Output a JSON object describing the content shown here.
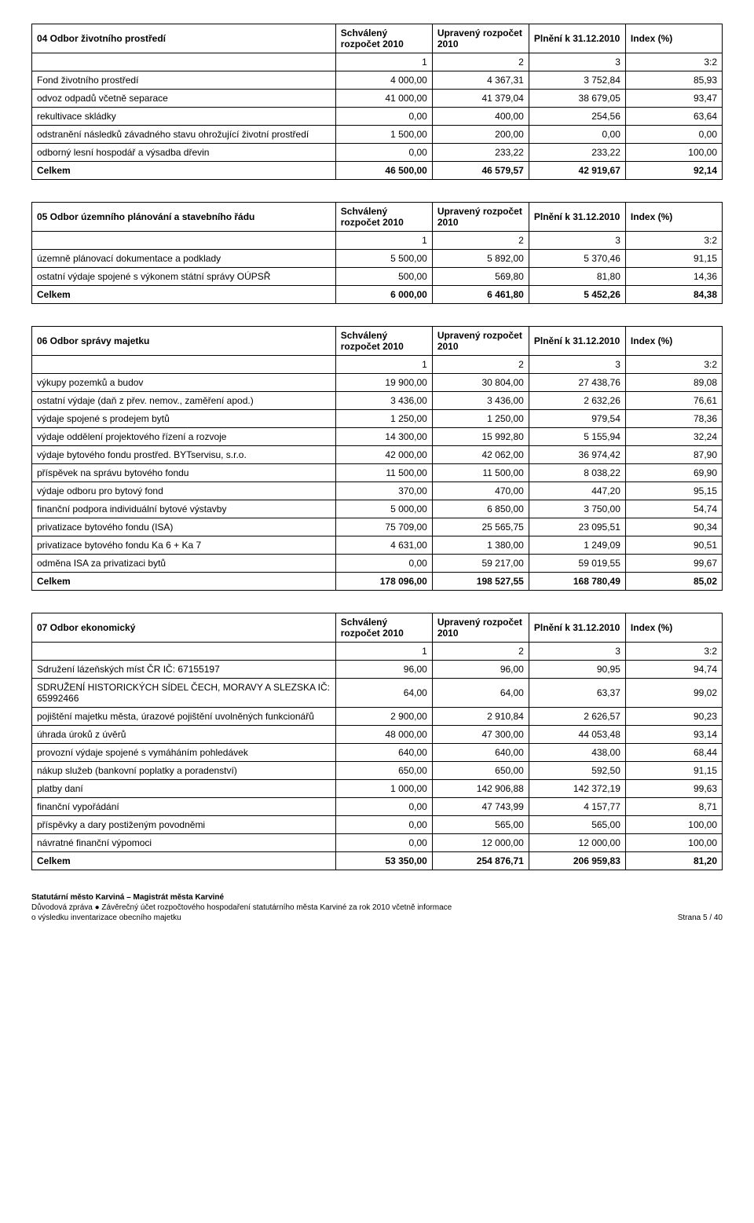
{
  "headers": {
    "schvaleny": "Schválený rozpočet 2010",
    "upraveny": "Upravený rozpočet 2010",
    "plneni": "Plnění k 31.12.2010",
    "index": "Index (%)",
    "sub": [
      "1",
      "2",
      "3",
      "3:2"
    ]
  },
  "tables": [
    {
      "title": "04 Odbor životního prostředí",
      "rows": [
        {
          "name": "Fond životního prostředí",
          "v": [
            "4 000,00",
            "4 367,31",
            "3 752,84",
            "85,93"
          ]
        },
        {
          "name": "odvoz odpadů včetně separace",
          "v": [
            "41 000,00",
            "41 379,04",
            "38 679,05",
            "93,47"
          ]
        },
        {
          "name": "rekultivace skládky",
          "v": [
            "0,00",
            "400,00",
            "254,56",
            "63,64"
          ]
        },
        {
          "name": "odstranění následků závadného stavu ohrožující životní prostředí",
          "v": [
            "1 500,00",
            "200,00",
            "0,00",
            "0,00"
          ]
        },
        {
          "name": "odborný lesní hospodář a výsadba dřevin",
          "v": [
            "0,00",
            "233,22",
            "233,22",
            "100,00"
          ]
        }
      ],
      "total": {
        "name": "Celkem",
        "v": [
          "46 500,00",
          "46 579,57",
          "42 919,67",
          "92,14"
        ]
      }
    },
    {
      "title": "05 Odbor územního plánování a stavebního řádu",
      "rows": [
        {
          "name": "územně plánovací dokumentace a podklady",
          "v": [
            "5 500,00",
            "5 892,00",
            "5 370,46",
            "91,15"
          ]
        },
        {
          "name": "ostatní výdaje spojené s výkonem státní správy OÚPSŘ",
          "v": [
            "500,00",
            "569,80",
            "81,80",
            "14,36"
          ]
        }
      ],
      "total": {
        "name": "Celkem",
        "v": [
          "6 000,00",
          "6 461,80",
          "5 452,26",
          "84,38"
        ]
      }
    },
    {
      "title": "06 Odbor správy majetku",
      "rows": [
        {
          "name": "výkupy pozemků a budov",
          "v": [
            "19 900,00",
            "30 804,00",
            "27 438,76",
            "89,08"
          ]
        },
        {
          "name": "ostatní výdaje (daň z přev. nemov., zaměření apod.)",
          "v": [
            "3 436,00",
            "3 436,00",
            "2 632,26",
            "76,61"
          ]
        },
        {
          "name": "výdaje spojené s prodejem bytů",
          "v": [
            "1 250,00",
            "1 250,00",
            "979,54",
            "78,36"
          ]
        },
        {
          "name": "výdaje oddělení projektového řízení a rozvoje",
          "v": [
            "14 300,00",
            "15 992,80",
            "5 155,94",
            "32,24"
          ]
        },
        {
          "name": "výdaje bytového fondu prostřed. BYTservisu, s.r.o.",
          "v": [
            "42 000,00",
            "42 062,00",
            "36 974,42",
            "87,90"
          ]
        },
        {
          "name": "příspěvek na správu bytového fondu",
          "v": [
            "11 500,00",
            "11 500,00",
            "8 038,22",
            "69,90"
          ]
        },
        {
          "name": "výdaje odboru pro bytový fond",
          "v": [
            "370,00",
            "470,00",
            "447,20",
            "95,15"
          ]
        },
        {
          "name": "finanční podpora individuální bytové výstavby",
          "v": [
            "5 000,00",
            "6 850,00",
            "3 750,00",
            "54,74"
          ]
        },
        {
          "name": "privatizace bytového fondu (ISA)",
          "v": [
            "75 709,00",
            "25 565,75",
            "23 095,51",
            "90,34"
          ]
        },
        {
          "name": "privatizace bytového fondu Ka 6 + Ka 7",
          "v": [
            "4 631,00",
            "1 380,00",
            "1 249,09",
            "90,51"
          ]
        },
        {
          "name": "odměna ISA za privatizaci bytů",
          "v": [
            "0,00",
            "59 217,00",
            "59 019,55",
            "99,67"
          ]
        }
      ],
      "total": {
        "name": "Celkem",
        "v": [
          "178 096,00",
          "198 527,55",
          "168 780,49",
          "85,02"
        ]
      }
    },
    {
      "title": "07 Odbor ekonomický",
      "rows": [
        {
          "name": "Sdružení lázeňských míst ČR IČ: 67155197",
          "v": [
            "96,00",
            "96,00",
            "90,95",
            "94,74"
          ]
        },
        {
          "name": "SDRUŽENÍ HISTORICKÝCH SÍDEL ČECH, MORAVY A SLEZSKA IČ: 65992466",
          "v": [
            "64,00",
            "64,00",
            "63,37",
            "99,02"
          ]
        },
        {
          "name": "pojištění majetku města, úrazové pojištění uvolněných funkcionářů",
          "v": [
            "2 900,00",
            "2 910,84",
            "2 626,57",
            "90,23"
          ]
        },
        {
          "name": "úhrada úroků z úvěrů",
          "v": [
            "48 000,00",
            "47 300,00",
            "44 053,48",
            "93,14"
          ]
        },
        {
          "name": "provozní výdaje spojené s vymáháním pohledávek",
          "v": [
            "640,00",
            "640,00",
            "438,00",
            "68,44"
          ]
        },
        {
          "name": "nákup služeb (bankovní poplatky a poradenství)",
          "v": [
            "650,00",
            "650,00",
            "592,50",
            "91,15"
          ]
        },
        {
          "name": "platby daní",
          "v": [
            "1 000,00",
            "142 906,88",
            "142 372,19",
            "99,63"
          ]
        },
        {
          "name": "finanční vypořádání",
          "v": [
            "0,00",
            "47 743,99",
            "4 157,77",
            "8,71"
          ]
        },
        {
          "name": "příspěvky a dary postiženým povodněmi",
          "v": [
            "0,00",
            "565,00",
            "565,00",
            "100,00"
          ]
        },
        {
          "name": "návratné finanční výpomoci",
          "v": [
            "0,00",
            "12 000,00",
            "12 000,00",
            "100,00"
          ]
        }
      ],
      "total": {
        "name": "Celkem",
        "v": [
          "53 350,00",
          "254 876,71",
          "206 959,83",
          "81,20"
        ]
      }
    }
  ],
  "footer": {
    "line1": "Statutární město Karviná – Magistrát města Karviné",
    "line2": "Důvodová zpráva ● Závěrečný účet rozpočtového hospodaření statutárního města Karviné za rok 2010 včetně informace",
    "line3": "o výsledku inventarizace obecního majetku",
    "page": "Strana 5 / 40"
  }
}
